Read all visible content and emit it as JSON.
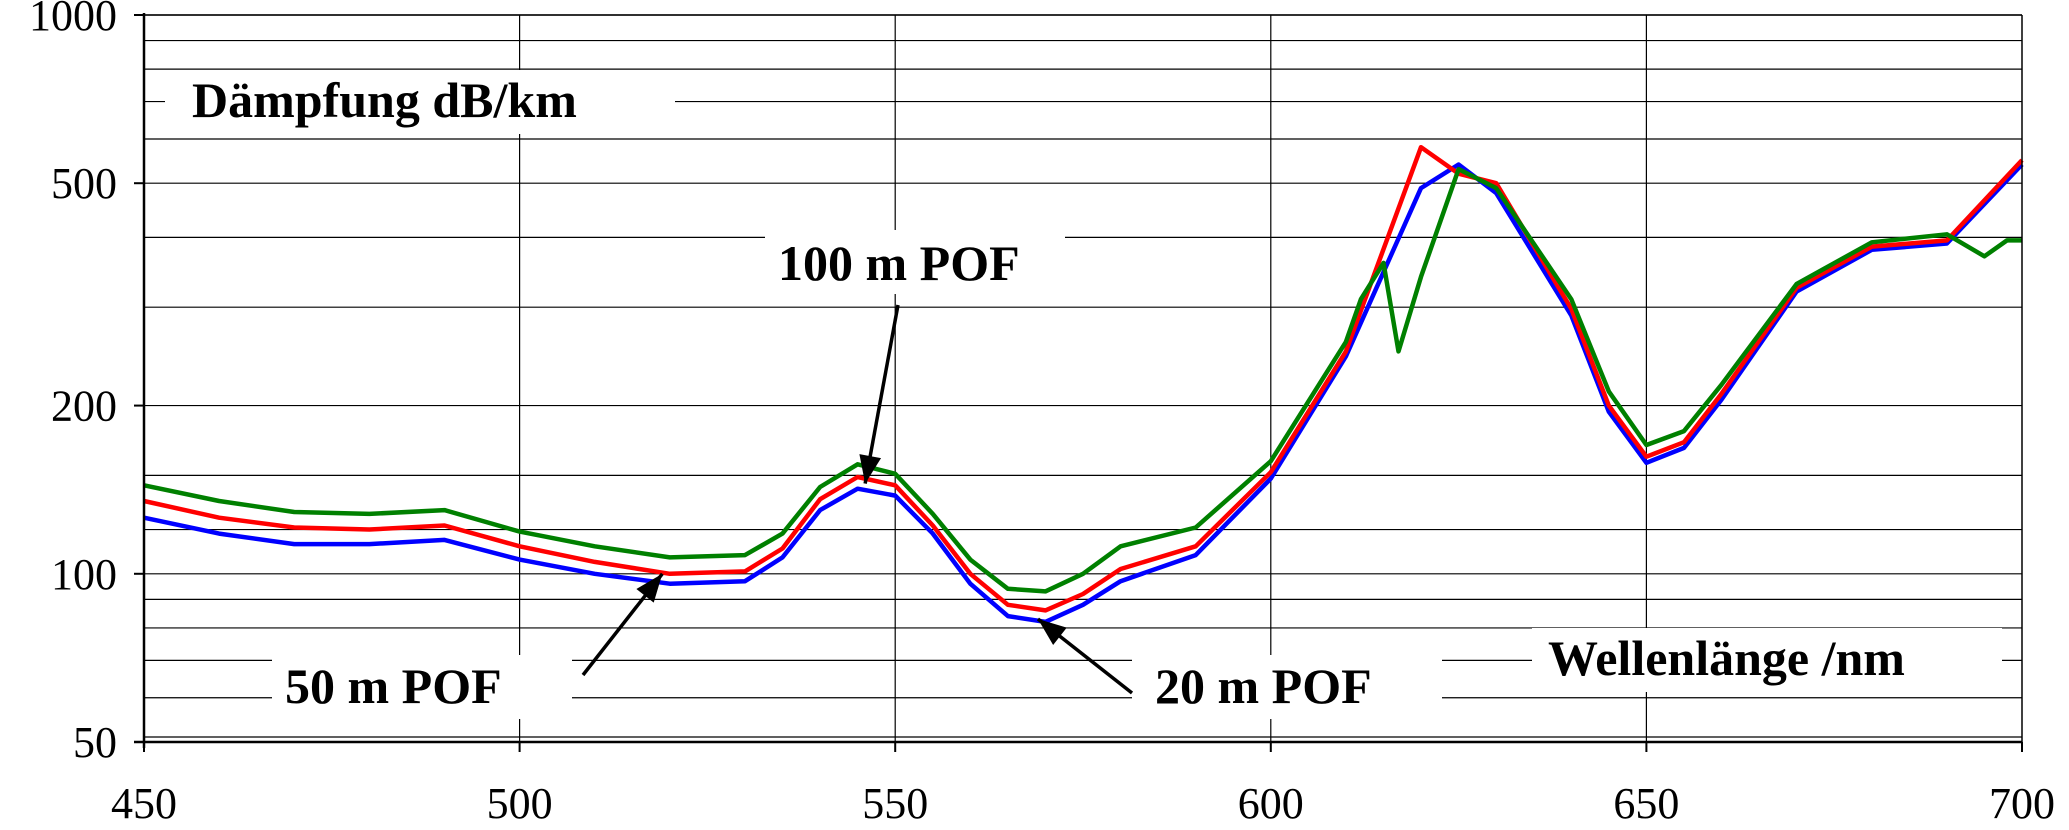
{
  "chart_data": {
    "type": "line",
    "ylabel": "Dämpfung dB/km",
    "xlabel": "Wellenlänge /nm",
    "xlim": [
      450,
      700
    ],
    "ylim": [
      50,
      1000
    ],
    "y_scale": "log",
    "grid": true,
    "x_ticks": [
      "450",
      "500",
      "550",
      "600",
      "650",
      "700"
    ],
    "y_ticks": [
      "50",
      "100",
      "200",
      "500",
      "1000"
    ],
    "annotations": [
      {
        "text": "100 m POF",
        "arrow_to": [
          546,
          145
        ]
      },
      {
        "text": "50 m POF",
        "arrow_to": [
          519,
          100
        ]
      },
      {
        "text": "20 m POF",
        "arrow_to": [
          569,
          83
        ]
      }
    ],
    "series": [
      {
        "name": "20 m POF",
        "color": "#0000ff",
        "x": [
          450,
          460,
          470,
          480,
          490,
          500,
          510,
          520,
          530,
          535,
          540,
          545,
          550,
          555,
          560,
          565,
          570,
          575,
          580,
          590,
          600,
          610,
          620,
          625,
          630,
          640,
          645,
          650,
          655,
          660,
          670,
          680,
          690,
          700
        ],
        "y": [
          126,
          118,
          113,
          113,
          115,
          106,
          100,
          96,
          97,
          107,
          130,
          142,
          138,
          118,
          96,
          84,
          82,
          88,
          97,
          108,
          148,
          245,
          490,
          540,
          480,
          290,
          195,
          158,
          168,
          205,
          320,
          380,
          390,
          540
        ]
      },
      {
        "name": "50 m POF",
        "color": "#ff0000",
        "x": [
          450,
          460,
          470,
          480,
          490,
          500,
          510,
          520,
          530,
          535,
          540,
          545,
          550,
          555,
          560,
          565,
          570,
          575,
          580,
          590,
          600,
          610,
          620,
          625,
          630,
          640,
          645,
          650,
          655,
          660,
          670,
          680,
          690,
          700
        ],
        "y": [
          135,
          126,
          121,
          120,
          122,
          112,
          105,
          100,
          101,
          111,
          136,
          149,
          144,
          122,
          100,
          88,
          86,
          92,
          102,
          112,
          152,
          250,
          580,
          520,
          500,
          298,
          200,
          162,
          172,
          210,
          325,
          385,
          395,
          550
        ]
      },
      {
        "name": "100 m POF",
        "color": "#008000",
        "x": [
          450,
          460,
          470,
          480,
          490,
          500,
          510,
          520,
          530,
          535,
          540,
          545,
          550,
          555,
          560,
          565,
          570,
          575,
          580,
          590,
          600,
          610,
          612,
          615,
          617,
          620,
          625,
          630,
          640,
          645,
          650,
          655,
          660,
          670,
          680,
          690,
          695,
          698,
          700
        ],
        "y": [
          144,
          135,
          129,
          128,
          130,
          119,
          112,
          107,
          108,
          118,
          143,
          157,
          151,
          128,
          106,
          94,
          93,
          100,
          112,
          121,
          159,
          260,
          310,
          360,
          250,
          340,
          530,
          490,
          310,
          212,
          170,
          180,
          218,
          330,
          392,
          405,
          370,
          395,
          395
        ]
      }
    ]
  }
}
